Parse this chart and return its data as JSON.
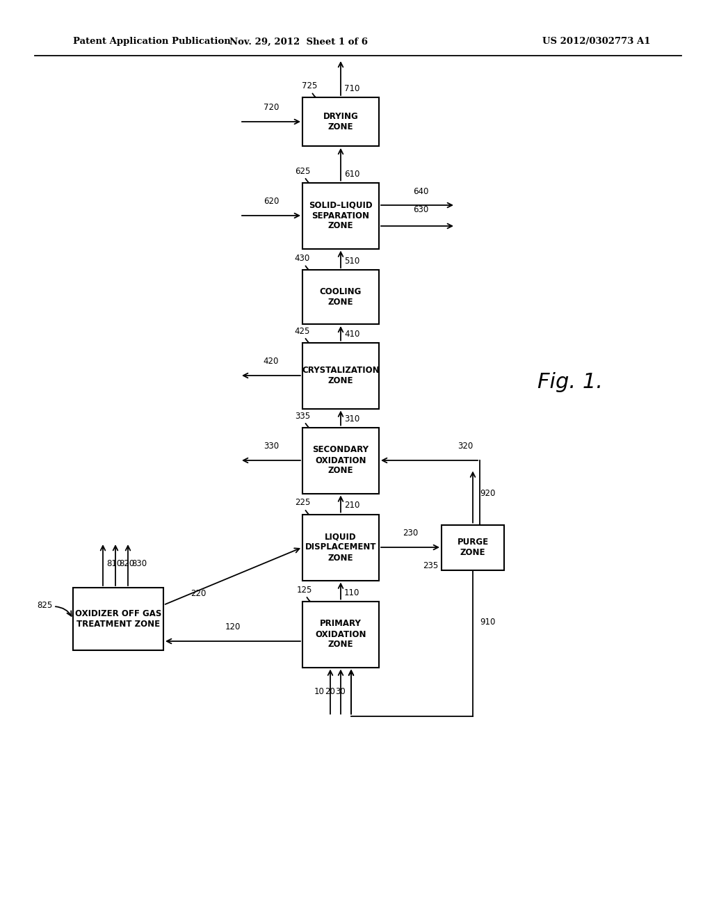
{
  "header_left": "Patent Application Publication",
  "header_mid": "Nov. 29, 2012  Sheet 1 of 6",
  "header_right": "US 2012/0302773 A1",
  "fig_label": "Fig. 1.",
  "background_color": "#ffffff",
  "fig_w": 10.24,
  "fig_h": 13.2,
  "dpi": 100
}
